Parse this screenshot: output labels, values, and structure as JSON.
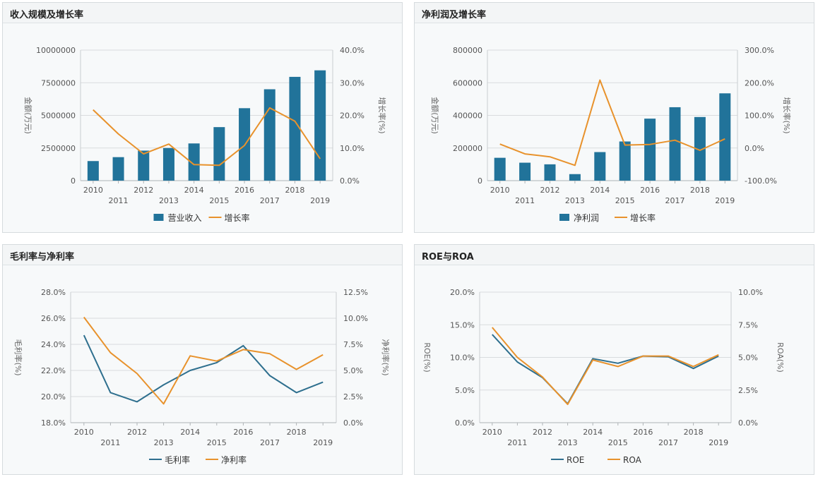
{
  "colors": {
    "bar": "#21739a",
    "line_orange": "#e8922c",
    "line_blue": "#2e6f8e",
    "grid": "#d9dcde",
    "axis_text": "#555555"
  },
  "chart_data": [
    {
      "type": "bar-line",
      "title": "收入规模及增长率",
      "categories": [
        "2010",
        "2011",
        "2012",
        "2013",
        "2014",
        "2015",
        "2016",
        "2017",
        "2018",
        "2019"
      ],
      "left_axis": {
        "label": "金额(万元)",
        "min": 0,
        "max": 10000000,
        "ticks": [
          "0",
          "2500000",
          "5000000",
          "7500000",
          "10000000"
        ]
      },
      "right_axis": {
        "label": "增长率(%)",
        "min": 0,
        "max": 40,
        "ticks": [
          "0.0%",
          "10.0%",
          "20.0%",
          "30.0%",
          "40.0%"
        ]
      },
      "series": [
        {
          "name": "营业收入",
          "kind": "bar",
          "axis": "left",
          "values": [
            1500000,
            1800000,
            2300000,
            2500000,
            2850000,
            4100000,
            5550000,
            7000000,
            7950000,
            8450000
          ]
        },
        {
          "name": "增长率",
          "kind": "line",
          "axis": "right",
          "values": [
            21.7,
            14.3,
            8.2,
            11.2,
            4.9,
            4.7,
            10.8,
            22.3,
            18.2,
            6.7
          ]
        }
      ],
      "legend": [
        "营业收入",
        "增长率"
      ]
    },
    {
      "type": "bar-line",
      "title": "净利润及增长率",
      "categories": [
        "2010",
        "2011",
        "2012",
        "2013",
        "2014",
        "2015",
        "2016",
        "2017",
        "2018",
        "2019"
      ],
      "left_axis": {
        "label": "金额(万元)",
        "min": 0,
        "max": 800000,
        "ticks": [
          "0",
          "200000",
          "400000",
          "600000",
          "800000"
        ]
      },
      "right_axis": {
        "label": "增长率(%)",
        "min": -100,
        "max": 300,
        "ticks": [
          "-100.0%",
          "0.0%",
          "100.0%",
          "200.0%",
          "300.0%"
        ]
      },
      "series": [
        {
          "name": "净利润",
          "kind": "bar",
          "axis": "left",
          "values": [
            140000,
            110000,
            100000,
            40000,
            175000,
            240000,
            380000,
            450000,
            390000,
            535000
          ]
        },
        {
          "name": "增长率",
          "kind": "line",
          "axis": "right",
          "values": [
            12,
            -18,
            -27,
            -53,
            208,
            9,
            11,
            24,
            -7,
            28
          ]
        }
      ],
      "legend": [
        "净利润",
        "增长率"
      ]
    },
    {
      "type": "line",
      "title": "毛利率与净利率",
      "categories": [
        "2010",
        "2011",
        "2012",
        "2013",
        "2014",
        "2015",
        "2016",
        "2017",
        "2018",
        "2019"
      ],
      "left_axis": {
        "label": "毛利率(%)",
        "min": 18,
        "max": 28,
        "ticks": [
          "18.0%",
          "20.0%",
          "22.0%",
          "24.0%",
          "26.0%",
          "28.0%"
        ]
      },
      "right_axis": {
        "label": "净利率(%)",
        "min": 0,
        "max": 12.5,
        "ticks": [
          "0.0%",
          "2.5%",
          "5.0%",
          "7.5%",
          "10.0%",
          "12.5%"
        ]
      },
      "series": [
        {
          "name": "毛利率",
          "kind": "line",
          "axis": "left",
          "values": [
            24.7,
            20.3,
            19.6,
            20.9,
            22.0,
            22.6,
            23.9,
            21.6,
            20.3,
            21.1
          ]
        },
        {
          "name": "净利率",
          "kind": "line",
          "axis": "right",
          "values": [
            10.1,
            6.7,
            4.7,
            1.8,
            6.4,
            5.9,
            7.0,
            6.6,
            5.1,
            6.5
          ]
        }
      ],
      "legend": [
        "毛利率",
        "净利率"
      ]
    },
    {
      "type": "line",
      "title": "ROE与ROA",
      "categories": [
        "2010",
        "2011",
        "2012",
        "2013",
        "2014",
        "2015",
        "2016",
        "2017",
        "2018",
        "2019"
      ],
      "left_axis": {
        "label": "ROE(%)",
        "min": 0,
        "max": 20,
        "ticks": [
          "0.0%",
          "5.0%",
          "10.0%",
          "15.0%",
          "20.0%"
        ]
      },
      "right_axis": {
        "label": "ROA(%)",
        "min": 0,
        "max": 10,
        "ticks": [
          "0.0%",
          "2.5%",
          "5.0%",
          "7.5%",
          "10.0%"
        ]
      },
      "series": [
        {
          "name": "ROE",
          "kind": "line",
          "axis": "left",
          "values": [
            13.5,
            9.3,
            6.9,
            2.9,
            9.8,
            9.1,
            10.2,
            10.1,
            8.3,
            10.2
          ]
        },
        {
          "name": "ROA",
          "kind": "line",
          "axis": "right",
          "values": [
            7.3,
            5.0,
            3.5,
            1.4,
            4.8,
            4.3,
            5.1,
            5.1,
            4.3,
            5.2
          ]
        }
      ],
      "legend": [
        "ROE",
        "ROA"
      ]
    }
  ]
}
